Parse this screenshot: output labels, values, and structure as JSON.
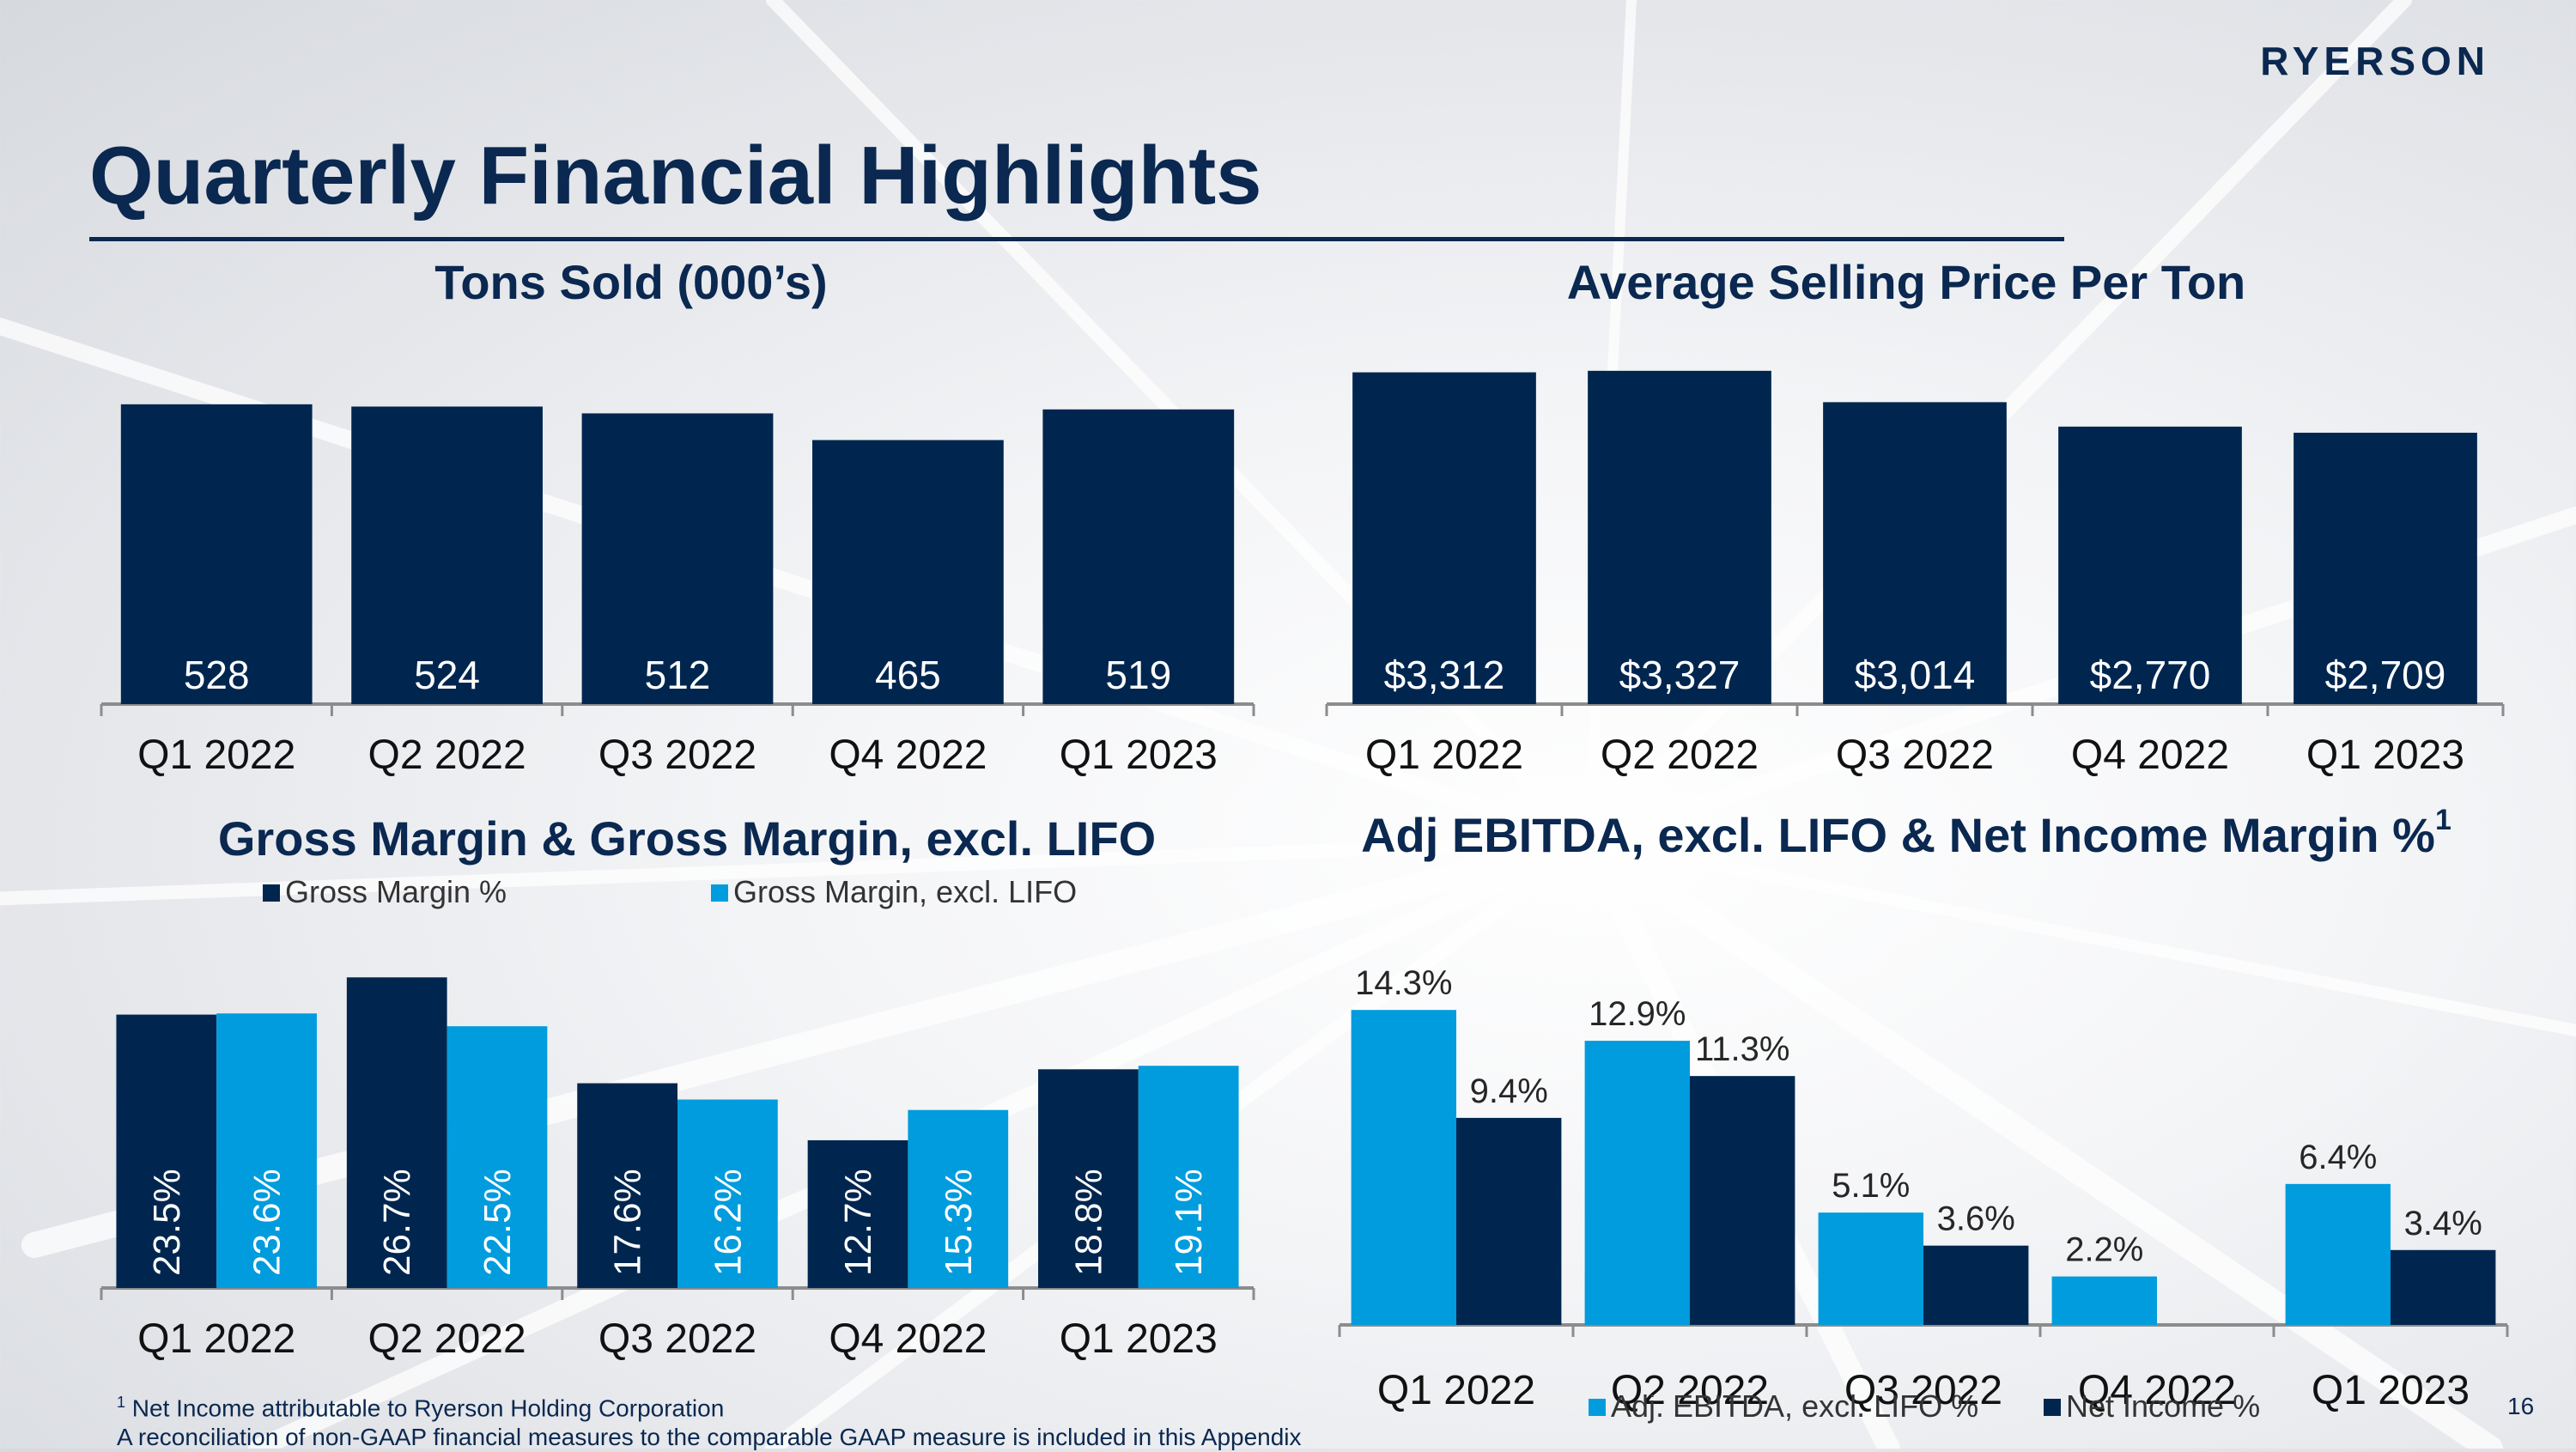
{
  "header": {
    "logo_text": "RYERSON",
    "title": "Quarterly Financial Highlights",
    "page_number": "16"
  },
  "footnotes": {
    "marker": "1",
    "line1": " Net Income attributable to Ryerson Holding Corporation",
    "line2": "A reconciliation of non-GAAP financial measures to the comparable GAAP measure is included in this Appendix"
  },
  "colors": {
    "navy": "#00264f",
    "cyan": "#009cdd",
    "axis": "#8c8c8c"
  },
  "chart_data": [
    {
      "id": "tons",
      "type": "bar",
      "title": "Tons Sold (000’s)",
      "categories": [
        "Q1 2022",
        "Q2 2022",
        "Q3 2022",
        "Q4 2022",
        "Q1 2023"
      ],
      "series": [
        {
          "values": [
            528,
            524,
            512,
            465,
            519
          ],
          "labels": [
            "528",
            "524",
            "512",
            "465",
            "519"
          ],
          "color": "#00264f"
        }
      ],
      "ylim": [
        0,
        620
      ],
      "data_label_position": "inside-bottom",
      "legend": "none",
      "grid": false
    },
    {
      "id": "asp",
      "type": "bar",
      "title": "Average Selling Price Per Ton",
      "categories": [
        "Q1 2022",
        "Q2 2022",
        "Q3 2022",
        "Q4 2022",
        "Q1 2023"
      ],
      "series": [
        {
          "values": [
            3312,
            3327,
            3014,
            2770,
            2709
          ],
          "labels": [
            "$3,312",
            "$3,327",
            "$3,014",
            "$2,770",
            "$2,709"
          ],
          "color": "#00264f"
        }
      ],
      "ylim": [
        0,
        3600
      ],
      "data_label_position": "inside-bottom",
      "legend": "none",
      "grid": false
    },
    {
      "id": "gm",
      "type": "bar",
      "title": "Gross Margin & Gross Margin, excl. LIFO",
      "categories": [
        "Q1 2022",
        "Q2 2022",
        "Q3 2022",
        "Q4 2022",
        "Q1 2023"
      ],
      "series": [
        {
          "name": "Gross Margin %",
          "values": [
            23.5,
            26.7,
            17.6,
            12.7,
            18.8
          ],
          "labels": [
            "23.5%",
            "26.7%",
            "17.6%",
            "12.7%",
            "18.8%"
          ],
          "color": "#00264f"
        },
        {
          "name": "Gross Margin, excl. LIFO",
          "values": [
            23.6,
            22.5,
            16.2,
            15.3,
            19.1
          ],
          "labels": [
            "23.6%",
            "22.5%",
            "16.2%",
            "15.3%",
            "19.1%"
          ],
          "color": "#009cdd"
        }
      ],
      "ylim": [
        0,
        31
      ],
      "data_label_position": "inside-bottom-rotated",
      "legend": "top",
      "grid": false
    },
    {
      "id": "ebitda",
      "type": "bar",
      "title": "Adj EBITDA, excl. LIFO & Net Income Margin %",
      "title_footnote": "1",
      "categories": [
        "Q1 2022",
        "Q2 2022",
        "Q3 2022",
        "Q4 2022",
        "Q1 2023"
      ],
      "series": [
        {
          "name": "Adj. EBITDA, excl. LIFO %",
          "values": [
            14.3,
            12.9,
            5.1,
            2.2,
            6.4
          ],
          "labels": [
            "14.3%",
            "12.9%",
            "5.1%",
            "2.2%",
            "6.4%"
          ],
          "color": "#009cdd"
        },
        {
          "name": "Net Income %",
          "values": [
            9.4,
            11.3,
            3.6,
            null,
            3.4
          ],
          "labels": [
            "9.4%",
            "11.3%",
            "3.6%",
            "",
            "3.4%"
          ],
          "color": "#00264f"
        }
      ],
      "ylim": [
        0,
        20
      ],
      "data_label_position": "above",
      "legend": "bottom",
      "grid": false
    }
  ]
}
